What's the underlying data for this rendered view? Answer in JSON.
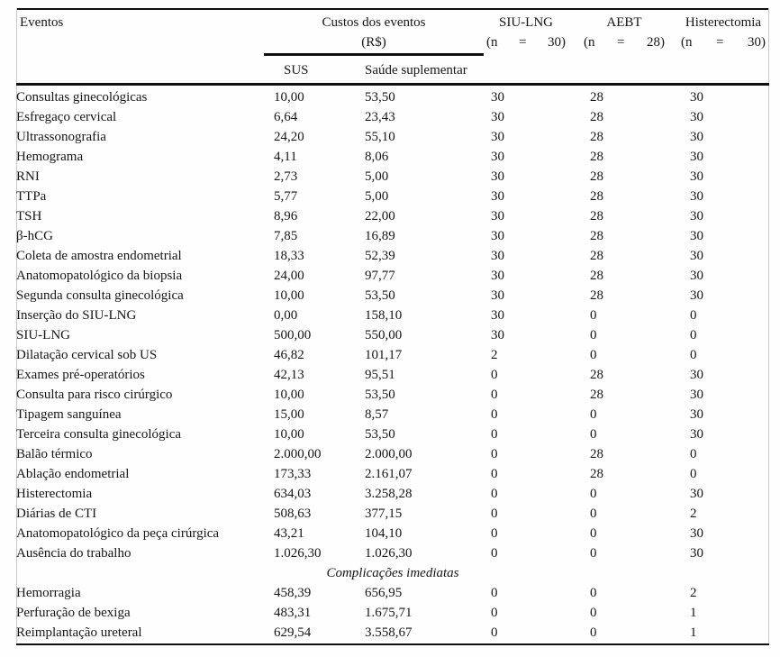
{
  "table": {
    "header": {
      "eventos": "Eventos",
      "custos": {
        "line1": "Custos dos eventos",
        "line2": "(R$)"
      },
      "sub": {
        "sus": "SUS",
        "saude": "Saúde suplementar"
      },
      "groups": [
        {
          "name": "SIU-LNG",
          "n_parts": [
            "(n",
            "=",
            "30)"
          ]
        },
        {
          "name": "AEBT",
          "n_parts": [
            "(n",
            "=",
            "28)"
          ]
        },
        {
          "name": "Histerectomia",
          "n_parts": [
            "(n",
            "=",
            "30)"
          ]
        }
      ]
    },
    "rows": [
      {
        "event": "Consultas ginecológicas",
        "sus": "10,00",
        "saude": "53,50",
        "siu": "30",
        "aebt": "28",
        "hist": "30"
      },
      {
        "event": "Esfregaço cervical",
        "sus": "6,64",
        "saude": "23,43",
        "siu": "30",
        "aebt": "28",
        "hist": "30"
      },
      {
        "event": "Ultrassonografia",
        "sus": "24,20",
        "saude": "55,10",
        "siu": "30",
        "aebt": "28",
        "hist": "30"
      },
      {
        "event": "Hemograma",
        "sus": "4,11",
        "saude": "8,06",
        "siu": "30",
        "aebt": "28",
        "hist": "30"
      },
      {
        "event": "RNI",
        "sus": "2,73",
        "saude": "5,00",
        "siu": "30",
        "aebt": "28",
        "hist": "30"
      },
      {
        "event": "TTPa",
        "sus": "5,77",
        "saude": "5,00",
        "siu": "30",
        "aebt": "28",
        "hist": "30"
      },
      {
        "event": "TSH",
        "sus": "8,96",
        "saude": "22,00",
        "siu": "30",
        "aebt": "28",
        "hist": "30"
      },
      {
        "event": "β-hCG",
        "sus": "7,85",
        "saude": "16,89",
        "siu": "30",
        "aebt": "28",
        "hist": "30"
      },
      {
        "event": "Coleta de amostra endometrial",
        "sus": "18,33",
        "saude": "52,39",
        "siu": "30",
        "aebt": "28",
        "hist": "30"
      },
      {
        "event": "Anatomopatológico da biopsia",
        "sus": "24,00",
        "saude": "97,77",
        "siu": "30",
        "aebt": "28",
        "hist": "30"
      },
      {
        "event": "Segunda consulta ginecológica",
        "sus": "10,00",
        "saude": "53,50",
        "siu": "30",
        "aebt": "28",
        "hist": "30"
      },
      {
        "event": "Inserção do SIU-LNG",
        "sus": "0,00",
        "saude": "158,10",
        "siu": "30",
        "aebt": "0",
        "hist": "0"
      },
      {
        "event": "SIU-LNG",
        "sus": "500,00",
        "saude": "550,00",
        "siu": "30",
        "aebt": "0",
        "hist": "0"
      },
      {
        "event": "Dilatação cervical sob US",
        "sus": "46,82",
        "saude": "101,17",
        "siu": "2",
        "aebt": "0",
        "hist": "0"
      },
      {
        "event": "Exames pré-operatórios",
        "sus": "42,13",
        "saude": "95,51",
        "siu": "0",
        "aebt": "28",
        "hist": "30"
      },
      {
        "event": "Consulta para risco cirúrgico",
        "sus": "10,00",
        "saude": "53,50",
        "siu": "0",
        "aebt": "28",
        "hist": "30"
      },
      {
        "event": "Tipagem sanguínea",
        "sus": "15,00",
        "saude": "8,57",
        "siu": "0",
        "aebt": "0",
        "hist": "30"
      },
      {
        "event": "Terceira consulta ginecológica",
        "sus": "10,00",
        "saude": "53,50",
        "siu": "0",
        "aebt": "0",
        "hist": "30"
      },
      {
        "event": "Balão térmico",
        "sus": "2.000,00",
        "saude": "2.000,00",
        "siu": "0",
        "aebt": "28",
        "hist": "0"
      },
      {
        "event": "Ablação endometrial",
        "sus": "173,33",
        "saude": "2.161,07",
        "siu": "0",
        "aebt": "28",
        "hist": "0"
      },
      {
        "event": "Histerectomia",
        "sus": "634,03",
        "saude": "3.258,28",
        "siu": "0",
        "aebt": "0",
        "hist": "30"
      },
      {
        "event": "Diárias de CTI",
        "sus": "508,63",
        "saude": "377,15",
        "siu": "0",
        "aebt": "0",
        "hist": "2"
      },
      {
        "event": "Anatomopatológico da peça cirúrgica",
        "sus": "43,21",
        "saude": "104,10",
        "siu": "0",
        "aebt": "0",
        "hist": "30"
      },
      {
        "event": "Ausência do trabalho",
        "sus": "1.026,30",
        "saude": "1.026,30",
        "siu": "0",
        "aebt": "0",
        "hist": "30"
      },
      {
        "section": true,
        "label": "Complicações imediatas"
      },
      {
        "event": "Hemorragia",
        "sus": "458,39",
        "saude": "656,95",
        "siu": "0",
        "aebt": "0",
        "hist": "2"
      },
      {
        "event": "Perfuração de bexiga",
        "sus": "483,31",
        "saude": "1.675,71",
        "siu": "0",
        "aebt": "0",
        "hist": "1"
      },
      {
        "event": "Reimplantação ureteral",
        "sus": "629,54",
        "saude": "3.558,67",
        "siu": "0",
        "aebt": "0",
        "hist": "1"
      }
    ]
  }
}
